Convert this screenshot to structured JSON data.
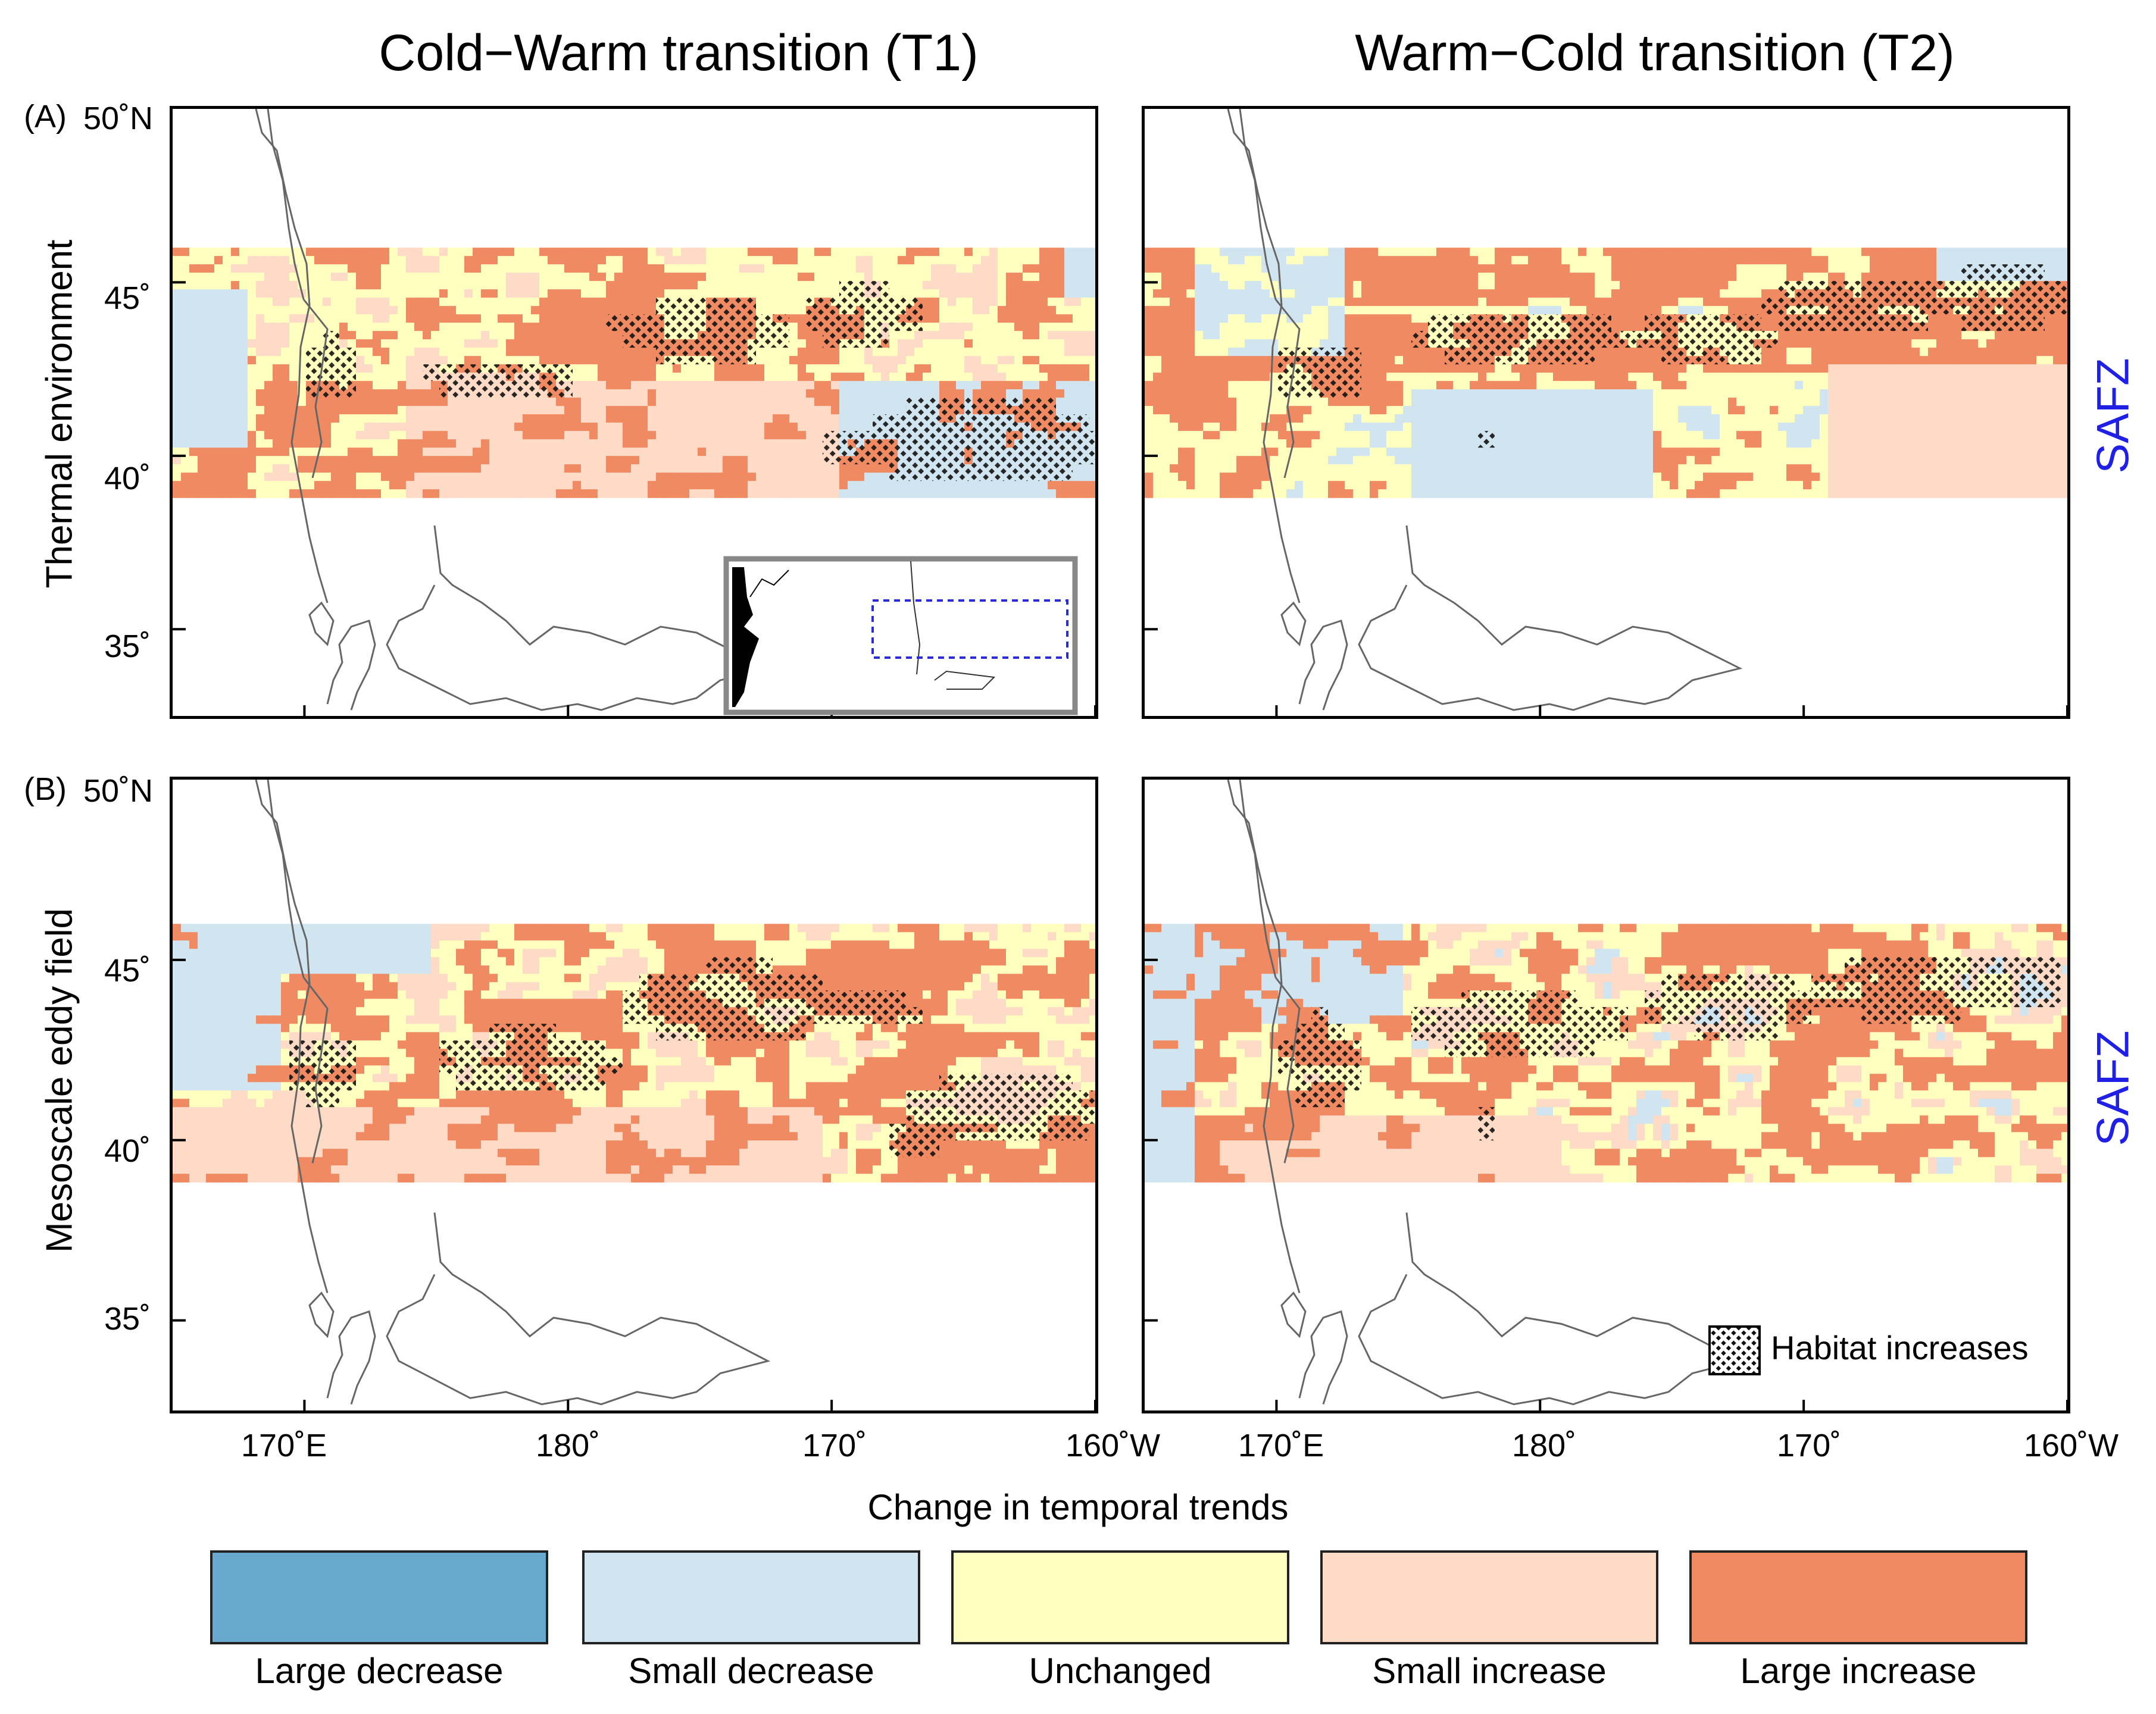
{
  "columns": [
    {
      "title": "Cold−Warm transition (T1)"
    },
    {
      "title": "Warm−Cold transition (T2)"
    }
  ],
  "rows": [
    {
      "tag": "(A)",
      "label": "Thermal environment",
      "region": "SAFZ"
    },
    {
      "tag": "(B)",
      "label": "Mesoscale eddy field",
      "region": "SAFZ"
    }
  ],
  "axes": {
    "lat_ticks": [
      "50˚N",
      "45˚",
      "40˚",
      "35˚"
    ],
    "lon_ticks": [
      "170˚E",
      "180˚",
      "170˚",
      "160˚W"
    ],
    "lat_range": [
      32.5,
      50
    ],
    "lon_range": [
      165,
      200
    ],
    "band_lat_range": [
      39,
      46
    ]
  },
  "hatch_legend": "Habitat increases",
  "xlabel": "Change in temporal trends",
  "legend": [
    {
      "label": "Large decrease",
      "color": "#67a9cf"
    },
    {
      "label": "Small decrease",
      "color": "#d1e5f0"
    },
    {
      "label": "Unchanged",
      "color": "#ffffbf"
    },
    {
      "label": "Small increase",
      "color": "#fddbc7"
    },
    {
      "label": "Large increase",
      "color": "#ef8a62"
    }
  ],
  "colors": {
    "region_label": "#1f1fe6",
    "inset_box": "#2b2bdb",
    "inset_frame": "#888888"
  }
}
